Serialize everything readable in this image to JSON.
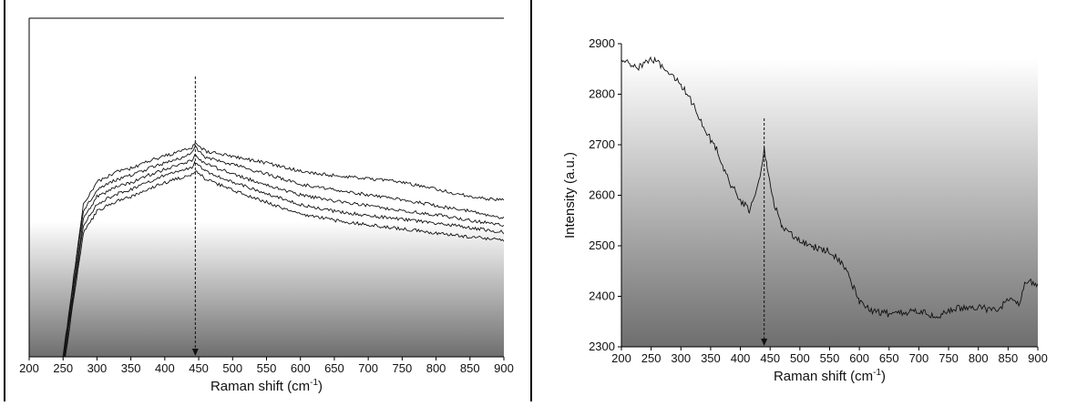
{
  "chart_data": [
    {
      "type": "line",
      "title": "",
      "xlabel": "Raman shift (cm",
      "xlabel_sup": "-1",
      "xlabel_suffix": ")",
      "ylabel": "",
      "xlim": [
        200,
        900
      ],
      "xticks": [
        "200",
        "250",
        "300",
        "350",
        "400",
        "450",
        "500",
        "550",
        "600",
        "650",
        "700",
        "750",
        "800",
        "850",
        "900"
      ],
      "marker_x": 445,
      "grid": false,
      "background": "vertical gradient white to dark gray",
      "series": [
        {
          "x": [
            250,
            280,
            300,
            330,
            350,
            380,
            400,
            420,
            440,
            445,
            460,
            500,
            550,
            600,
            650,
            700,
            750,
            800,
            850,
            900
          ],
          "y": [
            980,
            560,
            500,
            470,
            462,
            440,
            428,
            418,
            405,
            395,
            415,
            430,
            448,
            470,
            482,
            490,
            500,
            520,
            540,
            550
          ]
        },
        {
          "x": [
            250,
            280,
            300,
            330,
            350,
            380,
            400,
            420,
            440,
            445,
            460,
            500,
            550,
            600,
            650,
            700,
            750,
            800,
            850,
            900
          ],
          "y": [
            990,
            580,
            520,
            492,
            482,
            460,
            448,
            436,
            420,
            405,
            432,
            452,
            478,
            506,
            522,
            535,
            548,
            565,
            580,
            600
          ]
        },
        {
          "x": [
            250,
            280,
            300,
            330,
            350,
            380,
            400,
            420,
            440,
            445,
            460,
            500,
            550,
            600,
            650,
            700,
            750,
            800,
            850,
            900
          ],
          "y": [
            1000,
            600,
            540,
            512,
            502,
            478,
            465,
            453,
            440,
            425,
            450,
            478,
            508,
            535,
            552,
            565,
            578,
            590,
            605,
            618
          ]
        },
        {
          "x": [
            250,
            280,
            300,
            330,
            350,
            380,
            400,
            420,
            440,
            445,
            460,
            500,
            550,
            600,
            650,
            700,
            750,
            800,
            850,
            900
          ],
          "y": [
            1010,
            620,
            560,
            532,
            520,
            496,
            482,
            470,
            458,
            446,
            470,
            500,
            532,
            562,
            580,
            592,
            602,
            612,
            625,
            638
          ]
        },
        {
          "x": [
            250,
            280,
            300,
            330,
            350,
            380,
            400,
            420,
            440,
            445,
            460,
            500,
            550,
            600,
            650,
            700,
            750,
            800,
            850,
            900
          ],
          "y": [
            1020,
            640,
            580,
            552,
            540,
            516,
            502,
            490,
            478,
            468,
            492,
            522,
            555,
            588,
            605,
            618,
            628,
            640,
            650,
            660
          ]
        }
      ]
    },
    {
      "type": "line",
      "title": "",
      "xlabel": "Raman shift (cm",
      "xlabel_sup": "-1",
      "xlabel_suffix": ")",
      "ylabel": "Intensity (a.u.)",
      "xlim": [
        200,
        900
      ],
      "ylim": [
        2300,
        2900
      ],
      "xticks": [
        "200",
        "250",
        "300",
        "350",
        "400",
        "450",
        "500",
        "550",
        "600",
        "650",
        "700",
        "750",
        "800",
        "850",
        "900"
      ],
      "yticks": [
        "2300",
        "2400",
        "2500",
        "2600",
        "2700",
        "2800",
        "2900"
      ],
      "marker_x": 440,
      "grid": false,
      "background": "vertical gradient white to dark gray",
      "series": [
        {
          "x": [
            200,
            225,
            250,
            260,
            280,
            300,
            320,
            340,
            360,
            380,
            400,
            415,
            425,
            435,
            440,
            445,
            455,
            470,
            500,
            530,
            550,
            575,
            600,
            620,
            650,
            700,
            730,
            760,
            800,
            830,
            850,
            870,
            880,
            900
          ],
          "y": [
            2870,
            2850,
            2870,
            2865,
            2840,
            2820,
            2780,
            2730,
            2690,
            2630,
            2590,
            2570,
            2600,
            2650,
            2690,
            2660,
            2590,
            2540,
            2510,
            2495,
            2490,
            2460,
            2390,
            2370,
            2365,
            2370,
            2360,
            2375,
            2380,
            2370,
            2395,
            2385,
            2430,
            2425
          ]
        }
      ]
    }
  ]
}
